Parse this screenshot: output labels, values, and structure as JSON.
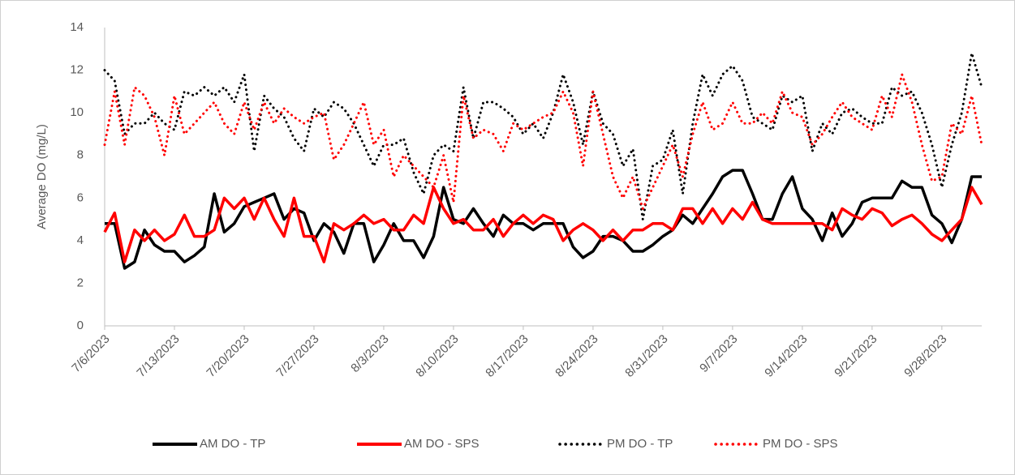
{
  "chart_data": {
    "type": "line",
    "y_label": "Average DO (mg/L)",
    "categories": [
      "7/6/2023",
      null,
      null,
      null,
      null,
      null,
      null,
      "7/13/2023",
      null,
      null,
      null,
      null,
      null,
      null,
      "7/20/2023",
      null,
      null,
      null,
      null,
      null,
      null,
      "7/27/2023",
      null,
      null,
      null,
      null,
      null,
      null,
      "8/3/2023",
      null,
      null,
      null,
      null,
      null,
      null,
      "8/10/2023",
      null,
      null,
      null,
      null,
      null,
      null,
      "8/17/2023",
      null,
      null,
      null,
      null,
      null,
      null,
      "8/24/2023",
      null,
      null,
      null,
      null,
      null,
      null,
      "8/31/2023",
      null,
      null,
      null,
      null,
      null,
      null,
      "9/7/2023",
      null,
      null,
      null,
      null,
      null,
      null,
      "9/14/2023",
      null,
      null,
      null,
      null,
      null,
      null,
      "9/21/2023",
      null,
      null,
      null,
      null,
      null,
      null,
      "9/28/2023",
      null,
      null,
      null,
      null
    ],
    "series": [
      {
        "name": "AM DO - TP",
        "color": "#000000",
        "dash": false,
        "values": [
          4.8,
          4.8,
          2.7,
          3.0,
          4.5,
          3.8,
          3.5,
          3.5,
          3.0,
          3.3,
          3.7,
          6.2,
          4.4,
          4.8,
          5.6,
          5.8,
          6.0,
          6.2,
          5.0,
          5.5,
          5.3,
          4.0,
          4.8,
          4.4,
          3.4,
          4.8,
          4.8,
          3.0,
          3.8,
          4.8,
          4.0,
          4.0,
          3.2,
          4.2,
          6.5,
          5.0,
          4.8,
          5.5,
          4.8,
          4.2,
          5.2,
          4.8,
          4.8,
          4.5,
          4.8,
          4.8,
          4.8,
          3.7,
          3.2,
          3.5,
          4.2,
          4.2,
          4.0,
          3.5,
          3.5,
          3.8,
          4.2,
          4.5,
          5.2,
          4.8,
          5.5,
          6.2,
          7.0,
          7.3,
          7.3,
          6.2,
          5.0,
          5.0,
          6.2,
          7.0,
          5.5,
          5.0,
          4.0,
          5.3,
          4.2,
          4.8,
          5.8,
          6.0,
          6.0,
          6.0,
          6.8,
          6.5,
          6.5,
          5.2,
          4.8,
          3.9,
          5.0,
          7.0,
          7.0
        ]
      },
      {
        "name": "AM DO - SPS",
        "color": "#ff0000",
        "dash": false,
        "values": [
          4.4,
          5.3,
          3.0,
          4.5,
          4.0,
          4.5,
          4.0,
          4.3,
          5.2,
          4.2,
          4.2,
          4.5,
          6.0,
          5.5,
          6.0,
          5.0,
          6.0,
          5.0,
          4.2,
          6.0,
          4.2,
          4.2,
          3.0,
          4.8,
          4.5,
          4.8,
          5.2,
          4.8,
          5.0,
          4.5,
          4.5,
          5.2,
          4.8,
          6.5,
          5.5,
          4.8,
          5.0,
          4.5,
          4.5,
          5.0,
          4.2,
          4.8,
          5.2,
          4.8,
          5.2,
          5.0,
          4.0,
          4.5,
          4.8,
          4.5,
          4.0,
          4.5,
          4.0,
          4.5,
          4.5,
          4.8,
          4.8,
          4.5,
          5.5,
          5.5,
          4.8,
          5.5,
          4.8,
          5.5,
          5.0,
          5.8,
          5.0,
          4.8,
          4.8,
          4.8,
          4.8,
          4.8,
          4.8,
          4.5,
          5.5,
          5.2,
          5.0,
          5.5,
          5.3,
          4.7,
          5.0,
          5.2,
          4.8,
          4.3,
          4.0,
          4.5,
          5.0,
          6.5,
          5.7
        ]
      },
      {
        "name": "PM DO - TP",
        "color": "#000000",
        "dash": true,
        "values": [
          12.0,
          11.5,
          9.0,
          9.5,
          9.5,
          10.0,
          9.5,
          9.2,
          11.0,
          10.8,
          11.2,
          10.8,
          11.2,
          10.5,
          11.8,
          8.2,
          10.8,
          10.2,
          9.8,
          8.8,
          8.2,
          10.2,
          9.8,
          10.5,
          10.2,
          9.5,
          8.5,
          7.5,
          8.5,
          8.5,
          8.8,
          7.2,
          6.2,
          8.0,
          8.5,
          8.2,
          11.2,
          8.8,
          10.5,
          10.5,
          10.2,
          9.8,
          9.0,
          9.5,
          8.8,
          10.0,
          11.8,
          10.5,
          8.5,
          11.0,
          9.5,
          9.0,
          7.5,
          8.3,
          5.0,
          7.5,
          7.8,
          9.2,
          6.2,
          9.5,
          11.8,
          10.8,
          11.8,
          12.2,
          11.5,
          9.8,
          9.5,
          9.2,
          10.8,
          10.5,
          10.8,
          8.2,
          9.5,
          9.0,
          10.0,
          10.2,
          9.8,
          9.5,
          9.5,
          11.2,
          10.8,
          11.0,
          10.0,
          8.5,
          6.5,
          8.5,
          10.0,
          12.8,
          11.2
        ]
      },
      {
        "name": "PM DO - SPS",
        "color": "#ff0000",
        "dash": true,
        "values": [
          8.5,
          11.0,
          8.5,
          11.2,
          10.8,
          9.8,
          8.0,
          10.8,
          9.0,
          9.5,
          10.0,
          10.5,
          9.5,
          9.0,
          10.5,
          9.2,
          10.5,
          9.5,
          10.2,
          9.8,
          9.5,
          9.8,
          10.0,
          7.8,
          8.5,
          9.5,
          10.5,
          8.5,
          9.2,
          7.0,
          8.0,
          7.5,
          7.0,
          6.5,
          8.0,
          5.8,
          10.8,
          8.8,
          9.2,
          9.0,
          8.2,
          9.5,
          9.2,
          9.5,
          9.8,
          10.0,
          11.0,
          10.0,
          7.5,
          11.0,
          9.0,
          7.0,
          6.0,
          7.0,
          5.5,
          6.5,
          7.5,
          8.5,
          7.0,
          9.0,
          10.5,
          9.2,
          9.5,
          10.5,
          9.5,
          9.5,
          10.0,
          9.5,
          11.0,
          10.0,
          9.8,
          8.5,
          9.0,
          9.8,
          10.5,
          9.8,
          9.5,
          9.2,
          10.8,
          9.8,
          11.8,
          10.5,
          8.5,
          6.8,
          7.0,
          9.5,
          9.0,
          10.8,
          8.5
        ]
      }
    ],
    "ylim": [
      0,
      14
    ],
    "yticks": [
      0,
      2,
      4,
      6,
      8,
      10,
      12,
      14
    ],
    "grid": false,
    "legend": "bottom"
  }
}
